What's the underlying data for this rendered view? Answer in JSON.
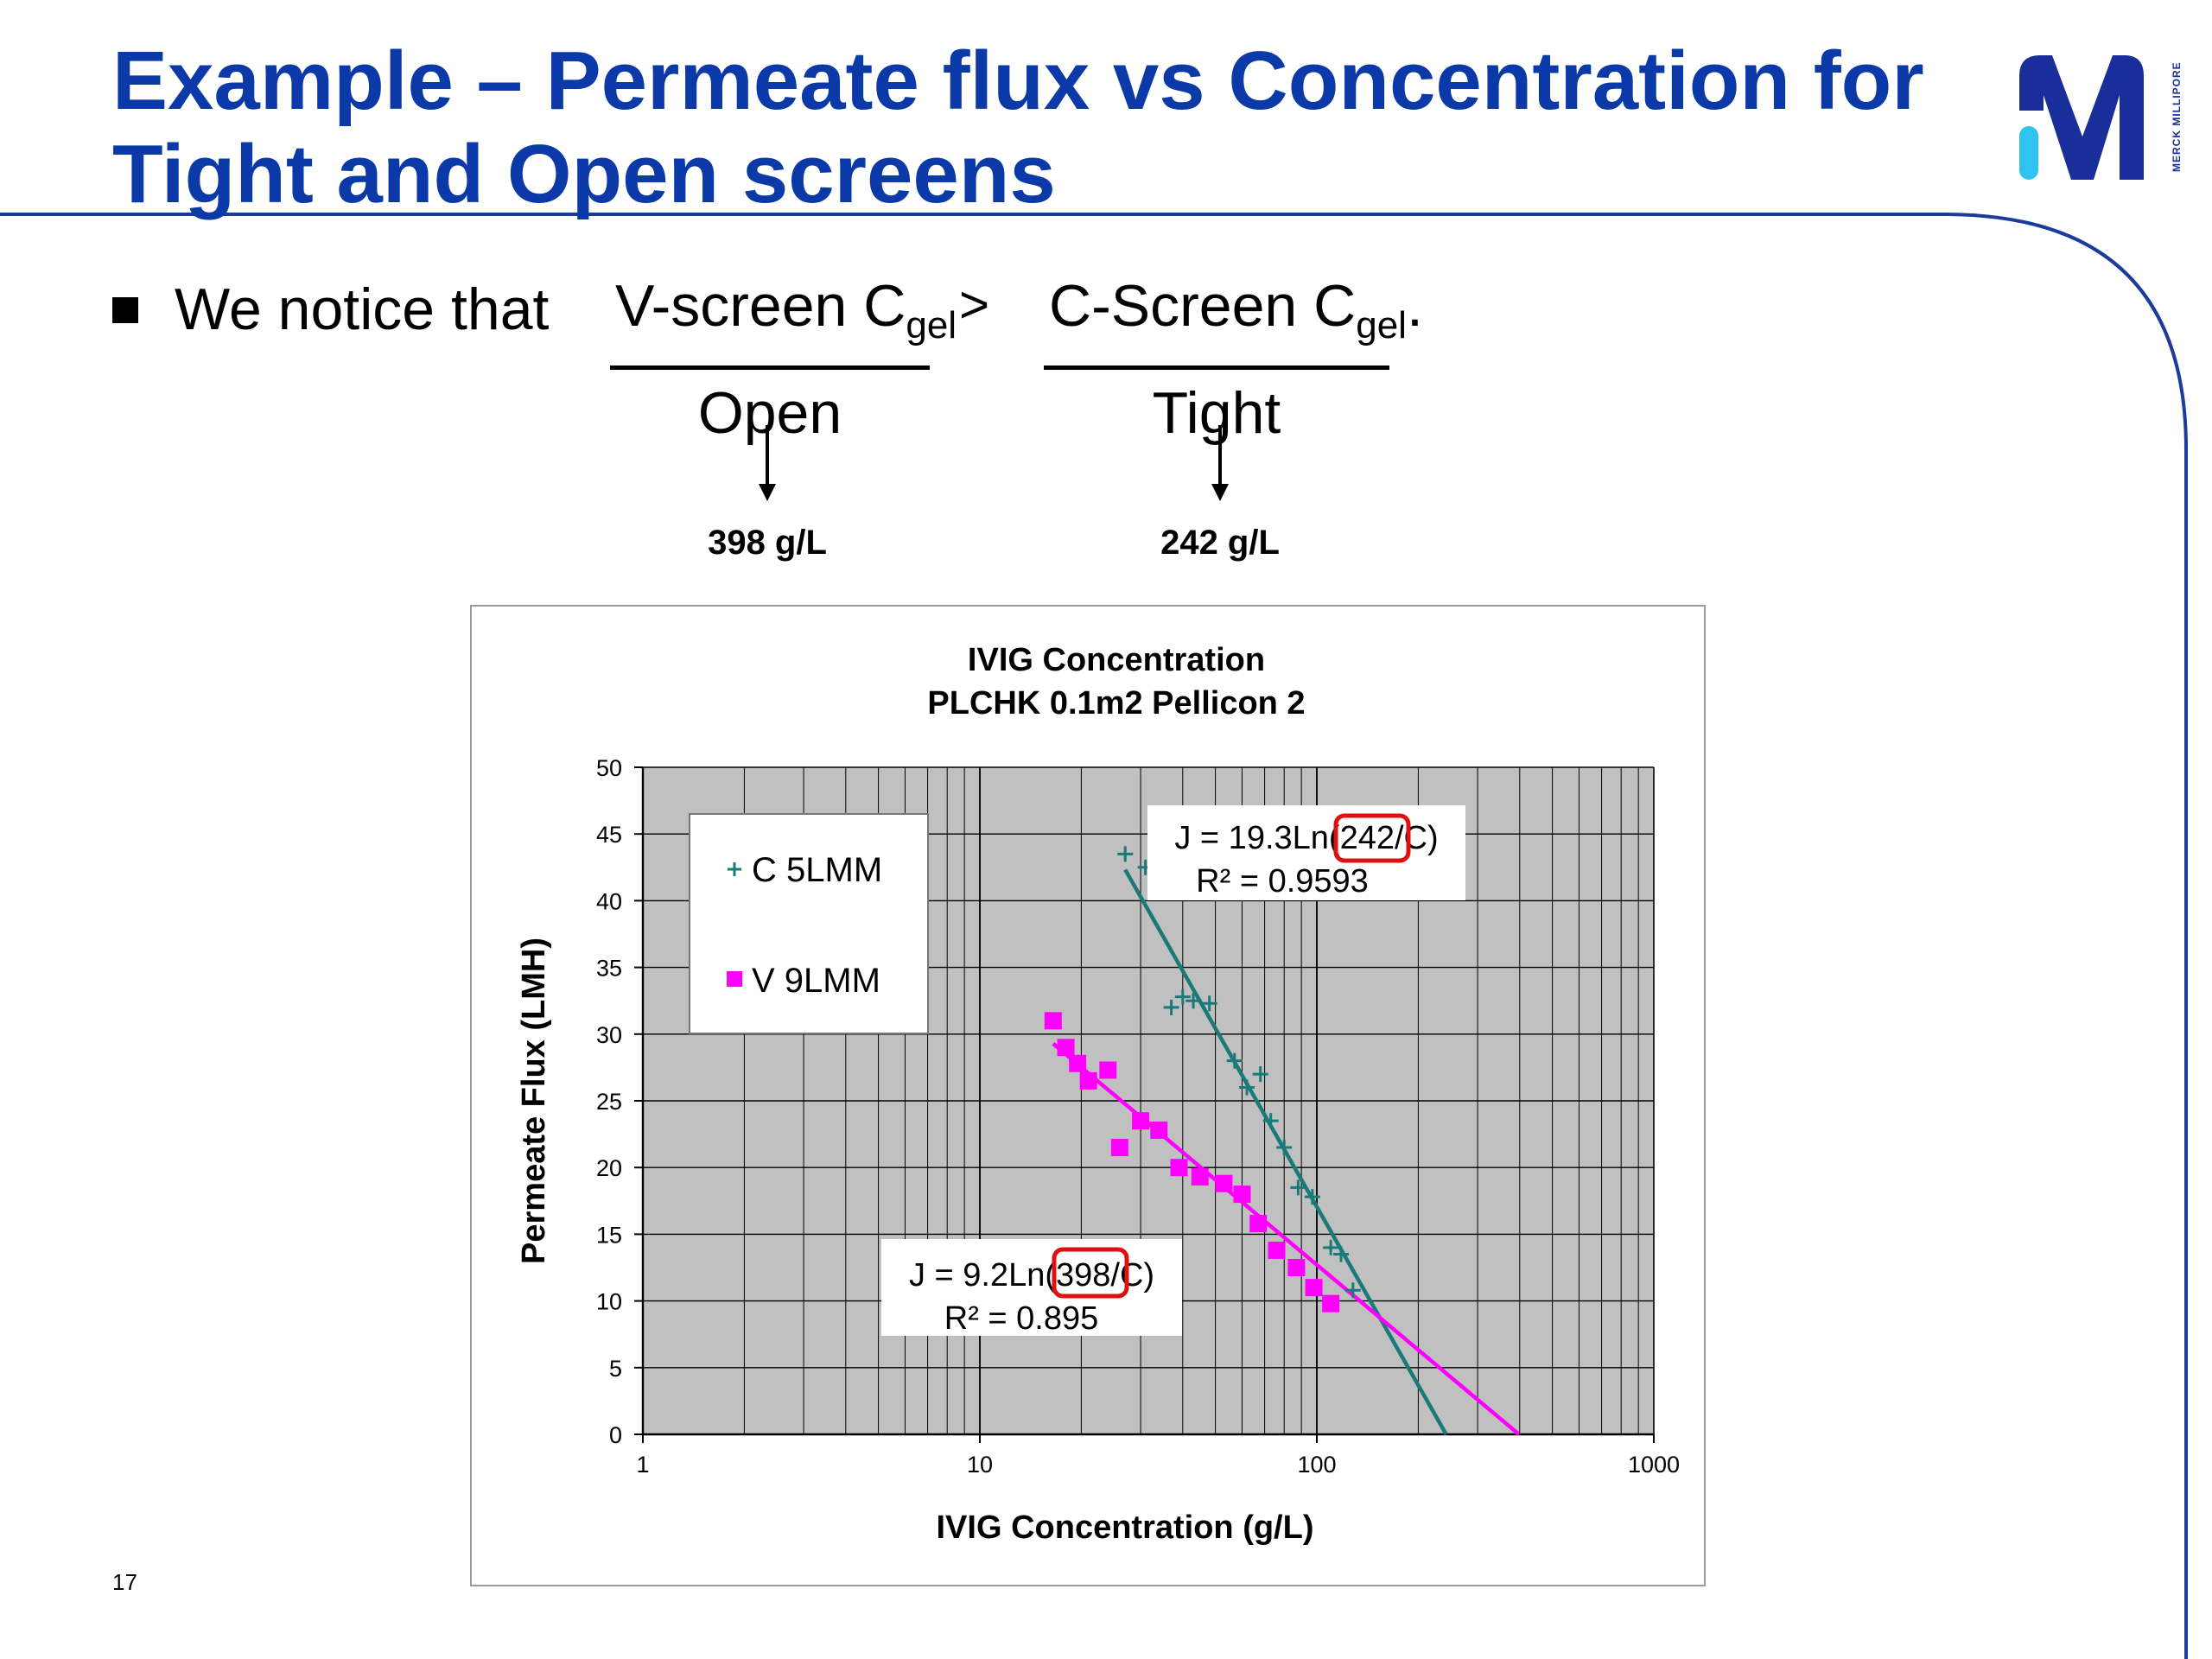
{
  "slide": {
    "title_line1": "Example – Permeate flux vs Concentration for",
    "title_line2": "Tight and Open screens",
    "bullet_text": "We notice that",
    "left_frac": {
      "top_text": "V-screen C",
      "top_sub": "gel",
      "bottom": "Open",
      "value": "398 g/L"
    },
    "comparator": ">",
    "right_frac": {
      "top_text": "C-Screen C",
      "top_sub": "gel",
      "top_tail": ".",
      "bottom": "Tight",
      "value": "242 g/L"
    },
    "page_number": "17",
    "logo_letter": "M",
    "logo_text": "MERCK MILLIPORE",
    "colors": {
      "title": "#0b3aa8",
      "frame": "#1b3c9c",
      "logo_blue": "#1a2e9b",
      "logo_cyan": "#2fc4ef"
    }
  },
  "chart_data": {
    "type": "scatter",
    "title": "IVIG Concentration",
    "subtitle": "PLCHK 0.1m2 Pellicon 2",
    "xlabel": "IVIG Concentration (g/L)",
    "ylabel": "Permeate Flux (LMH)",
    "x_scale": "log",
    "xlim": [
      1,
      1000
    ],
    "ylim": [
      0,
      50
    ],
    "x_ticks": [
      "1",
      "10",
      "100",
      "1000"
    ],
    "y_ticks": [
      "0",
      "5",
      "10",
      "15",
      "20",
      "25",
      "30",
      "35",
      "40",
      "45",
      "50"
    ],
    "grid": true,
    "plot_background": "#c0c0c0",
    "legend_position": "top-left",
    "series": [
      {
        "name": "C 5LMM",
        "marker": "plus",
        "color": "#1a7a78",
        "points": [
          [
            27,
            43.5
          ],
          [
            31,
            42.5
          ],
          [
            37,
            32
          ],
          [
            40,
            32.8
          ],
          [
            43,
            32.5
          ],
          [
            48,
            32.3
          ],
          [
            57,
            28
          ],
          [
            62,
            26
          ],
          [
            68,
            27
          ],
          [
            73,
            23.5
          ],
          [
            80,
            21.5
          ],
          [
            88,
            18.5
          ],
          [
            97,
            17.8
          ],
          [
            110,
            14
          ],
          [
            118,
            13.5
          ],
          [
            128,
            10.8
          ]
        ],
        "fit": {
          "a": 19.3,
          "k": 242
        }
      },
      {
        "name": "V 9LMM",
        "marker": "square",
        "color": "#ff00ff",
        "points": [
          [
            16.5,
            31
          ],
          [
            18,
            29
          ],
          [
            19.5,
            27.8
          ],
          [
            21,
            26.5
          ],
          [
            24,
            27.3
          ],
          [
            26,
            21.5
          ],
          [
            30,
            23.5
          ],
          [
            34,
            22.8
          ],
          [
            39,
            20
          ],
          [
            45,
            19.3
          ],
          [
            53,
            18.8
          ],
          [
            60,
            18
          ],
          [
            67,
            15.8
          ],
          [
            76,
            13.8
          ],
          [
            87,
            12.5
          ],
          [
            98,
            11
          ],
          [
            110,
            9.8
          ]
        ],
        "fit": {
          "a": 9.2,
          "k": 398
        }
      }
    ],
    "annotations": [
      {
        "line1_pre": "J = 19.3Ln(",
        "highlight": "242",
        "line1_post": "/C)",
        "line2": "R² = 0.9593"
      },
      {
        "line1_pre": "J = 9.2Ln(",
        "highlight": "398",
        "line1_post": "/C)",
        "line2": "R² = 0.895"
      }
    ]
  }
}
